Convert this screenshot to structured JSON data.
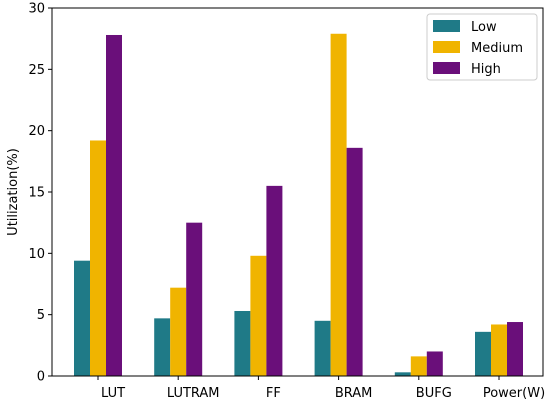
{
  "chart_data": {
    "type": "bar",
    "title": "",
    "xlabel": "",
    "ylabel": "Utilization(%)",
    "ylim": [
      0,
      30
    ],
    "yticks": [
      0,
      5,
      10,
      15,
      20,
      25,
      30
    ],
    "categories": [
      "LUT",
      "LUTRAM",
      "FF",
      "BRAM",
      "BUFG",
      "Power(W)"
    ],
    "series": [
      {
        "name": "Low",
        "color": "#1f7a87",
        "values": [
          9.4,
          4.7,
          5.3,
          4.5,
          0.3,
          3.6
        ]
      },
      {
        "name": "Medium",
        "color": "#f0b400",
        "values": [
          19.2,
          7.2,
          9.8,
          27.9,
          1.6,
          4.2
        ]
      },
      {
        "name": "High",
        "color": "#6a0f7a",
        "values": [
          27.8,
          12.5,
          15.5,
          18.6,
          2.0,
          4.4
        ]
      }
    ],
    "grid": false,
    "legend": {
      "position": "top-right",
      "entries": [
        "Low",
        "Medium",
        "High"
      ]
    }
  }
}
